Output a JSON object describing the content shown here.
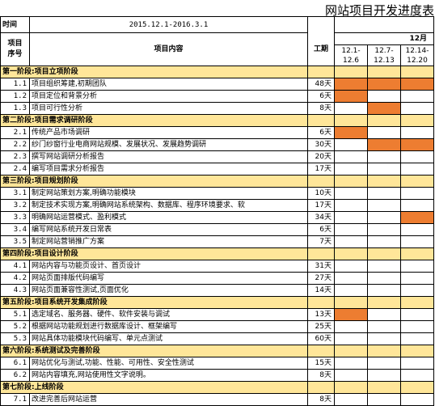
{
  "title": "网站项目开发进度表",
  "header": {
    "time_label": "时间",
    "period": "2015.12.1-2016.3.1",
    "seq_label_line1": "项目",
    "seq_label_line2": "序号",
    "content_label": "项目内容",
    "hours_label": "工期",
    "month_label": "12月",
    "weeks": [
      {
        "top": "12.1-",
        "bottom": "12.6"
      },
      {
        "top": "12.7-",
        "bottom": "12.13"
      },
      {
        "top": "12.14-",
        "bottom": "12.20"
      }
    ]
  },
  "rows": [
    {
      "type": "phase",
      "label": "第一阶段:项目立项阶段"
    },
    {
      "type": "task",
      "num": "1.1",
      "name": "项目组织筹建,初期团队",
      "days": "48天",
      "fill": [
        true,
        true,
        true
      ]
    },
    {
      "type": "task",
      "num": "1.2",
      "name": "项目定位和背景分析",
      "days": "6天",
      "fill": [
        true,
        false,
        false
      ]
    },
    {
      "type": "task",
      "num": "1.3",
      "name": "项目可行性分析",
      "days": "8天",
      "fill": [
        false,
        true,
        false
      ]
    },
    {
      "type": "phase",
      "label": "第二阶段:项目需求调研阶段"
    },
    {
      "type": "task",
      "num": "2.1",
      "name": "传统产品市场调研",
      "days": "6天",
      "fill": [
        true,
        false,
        false
      ]
    },
    {
      "type": "task",
      "num": "2.2",
      "name": "纱门纱窗行业电商网站规模、发展状况、发展趋势调研",
      "days": "30天",
      "fill": [
        false,
        true,
        true
      ]
    },
    {
      "type": "task",
      "num": "2.3",
      "name": "撰写网站调研分析报告",
      "days": "20天",
      "fill": [
        false,
        false,
        false
      ]
    },
    {
      "type": "task",
      "num": "2.4",
      "name": "编写项目需求分析报告",
      "days": "17天",
      "fill": [
        false,
        false,
        false
      ]
    },
    {
      "type": "phase",
      "label": "第三阶段:项目规划阶段"
    },
    {
      "type": "task",
      "num": "3.1",
      "name": "制定网站策划方案,明确功能模块",
      "days": "10天",
      "fill": [
        false,
        false,
        false
      ]
    },
    {
      "type": "task",
      "num": "3.2",
      "name": "制定技术实现方案,明确网站系统架构、数据库、程序环境要求、软",
      "days": "17天",
      "fill": [
        false,
        false,
        false
      ]
    },
    {
      "type": "task",
      "num": "3.3",
      "name": "明确网站运营模式、盈利模式",
      "days": "34天",
      "fill": [
        false,
        false,
        true
      ]
    },
    {
      "type": "task",
      "num": "3.4",
      "name": "编写网站系统开发日常表",
      "days": "6天",
      "fill": [
        false,
        false,
        false
      ]
    },
    {
      "type": "task",
      "num": "3.5",
      "name": "制定网站营销推广方案",
      "days": "7天",
      "fill": [
        false,
        false,
        false
      ]
    },
    {
      "type": "phase",
      "label": "第四阶段:项目设计阶段"
    },
    {
      "type": "task",
      "num": "4.1",
      "name": "网站内容与功能页设计、首页设计",
      "days": "31天",
      "fill": [
        false,
        false,
        false
      ]
    },
    {
      "type": "task",
      "num": "4.2",
      "name": "网站页面排版代码编写",
      "days": "27天",
      "fill": [
        false,
        false,
        false
      ]
    },
    {
      "type": "task",
      "num": "4.3",
      "name": "网站页面兼容性测试,页面优化",
      "days": "14天",
      "fill": [
        false,
        false,
        false
      ]
    },
    {
      "type": "phase",
      "label": "第五阶段:项目系统开发集成阶段"
    },
    {
      "type": "task",
      "num": "5.1",
      "name": "选定域名、服务器、硬件、软件安装与调试",
      "days": "13天",
      "fill": [
        true,
        false,
        false
      ]
    },
    {
      "type": "task",
      "num": "5.2",
      "name": "根据网站功能规划进行数据库设计、框架编写",
      "days": "25天",
      "fill": [
        false,
        false,
        false
      ]
    },
    {
      "type": "task",
      "num": "5.3",
      "name": "网站具体功能模块代码编写、单元点测试",
      "days": "60天",
      "fill": [
        false,
        false,
        false
      ]
    },
    {
      "type": "phase",
      "label": "第六阶段:系统测试及完善阶段"
    },
    {
      "type": "task",
      "num": "6.1",
      "name": "网站优化与测试,功能、性能、可用性、安全性测试",
      "days": "15天",
      "fill": [
        false,
        false,
        false
      ]
    },
    {
      "type": "task",
      "num": "6.2",
      "name": "网站内容填充,网站使用性文字说明。",
      "days": "8天",
      "fill": [
        false,
        false,
        false
      ]
    },
    {
      "type": "phase",
      "label": "第七阶段:上线阶段"
    },
    {
      "type": "task",
      "num": "7.1",
      "name": "改进完善后网站运营",
      "days": "8天",
      "fill": [
        false,
        false,
        false
      ]
    }
  ],
  "colors": {
    "phase_bg": "#FFE699",
    "bar": "#ED7D31"
  }
}
